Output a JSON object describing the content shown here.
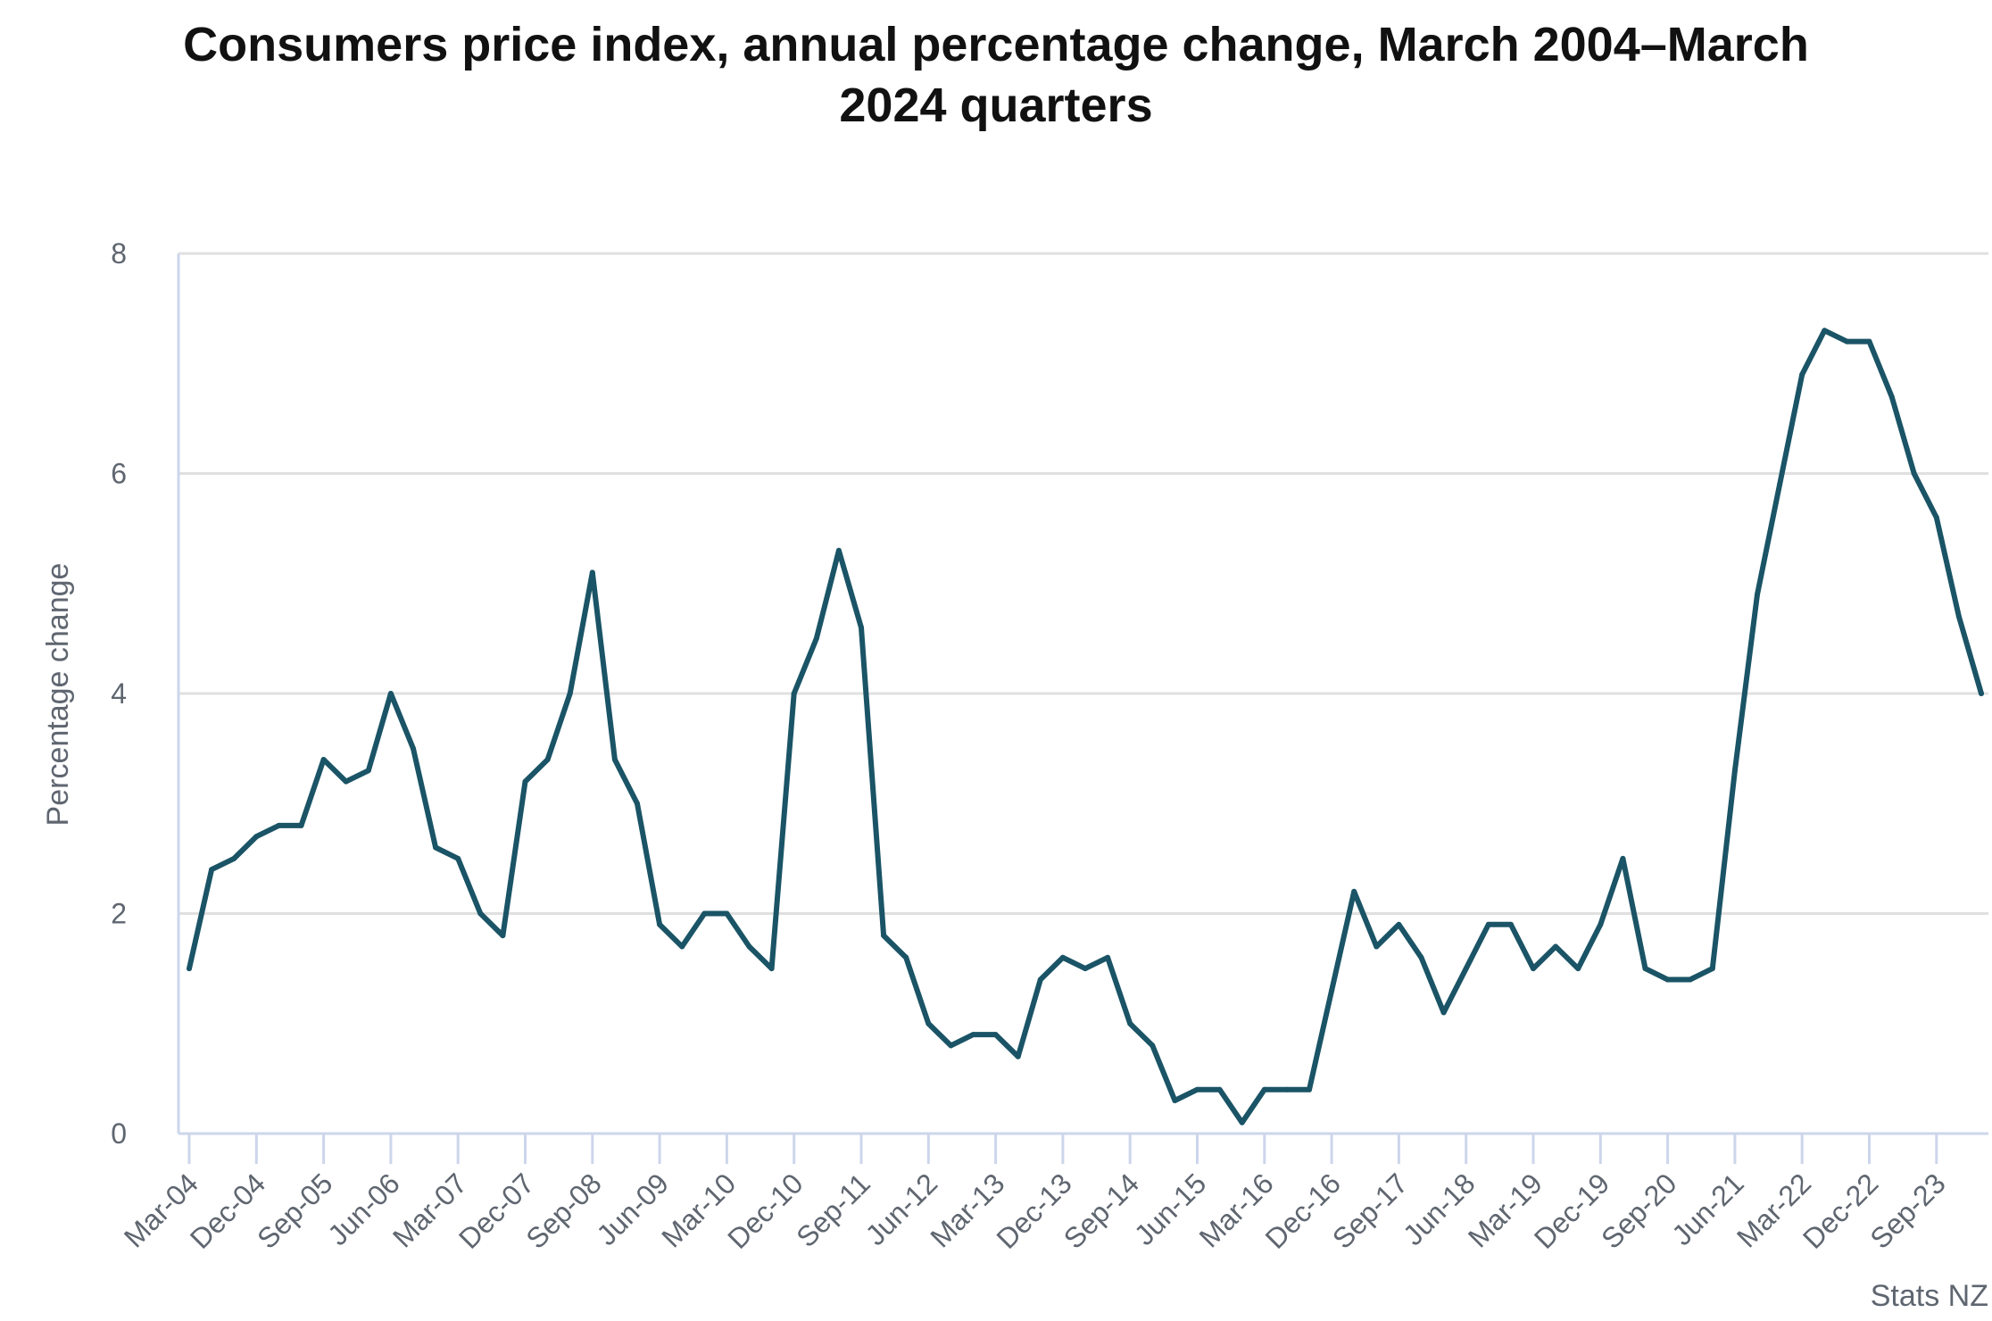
{
  "chart_data": {
    "type": "line",
    "title_lines": [
      "Consumers price index, annual percentage change, March 2004–March",
      "2024 quarters"
    ],
    "ylabel": "Percentage change",
    "xlabel": "",
    "ylim": [
      0,
      8
    ],
    "yticks": [
      0,
      2,
      4,
      6,
      8
    ],
    "grid": true,
    "legend": "none",
    "source": "Stats NZ",
    "line_color": "#1a5466",
    "x_tick_labels": [
      "Mar-04",
      "Dec-04",
      "Sep-05",
      "Jun-06",
      "Mar-07",
      "Dec-07",
      "Sep-08",
      "Jun-09",
      "Mar-10",
      "Dec-10",
      "Sep-11",
      "Jun-12",
      "Mar-13",
      "Dec-13",
      "Sep-14",
      "Jun-15",
      "Mar-16",
      "Dec-16",
      "Sep-17",
      "Jun-18",
      "Mar-19",
      "Dec-19",
      "Sep-20",
      "Jun-21",
      "Mar-22",
      "Dec-22",
      "Sep-23"
    ],
    "x": [
      "Mar-04",
      "Jun-04",
      "Sep-04",
      "Dec-04",
      "Mar-05",
      "Jun-05",
      "Sep-05",
      "Dec-05",
      "Mar-06",
      "Jun-06",
      "Sep-06",
      "Dec-06",
      "Mar-07",
      "Jun-07",
      "Sep-07",
      "Dec-07",
      "Mar-08",
      "Jun-08",
      "Sep-08",
      "Dec-08",
      "Mar-09",
      "Jun-09",
      "Sep-09",
      "Dec-09",
      "Mar-10",
      "Jun-10",
      "Sep-10",
      "Dec-10",
      "Mar-11",
      "Jun-11",
      "Sep-11",
      "Dec-11",
      "Mar-12",
      "Jun-12",
      "Sep-12",
      "Dec-12",
      "Mar-13",
      "Jun-13",
      "Sep-13",
      "Dec-13",
      "Mar-14",
      "Jun-14",
      "Sep-14",
      "Dec-14",
      "Mar-15",
      "Jun-15",
      "Sep-15",
      "Dec-15",
      "Mar-16",
      "Jun-16",
      "Sep-16",
      "Dec-16",
      "Mar-17",
      "Jun-17",
      "Sep-17",
      "Dec-17",
      "Mar-18",
      "Jun-18",
      "Sep-18",
      "Dec-18",
      "Mar-19",
      "Jun-19",
      "Sep-19",
      "Dec-19",
      "Mar-20",
      "Jun-20",
      "Sep-20",
      "Dec-20",
      "Mar-21",
      "Jun-21",
      "Sep-21",
      "Dec-21",
      "Mar-22",
      "Jun-22",
      "Sep-22",
      "Dec-22",
      "Mar-23",
      "Jun-23",
      "Sep-23",
      "Dec-23",
      "Mar-24"
    ],
    "series": [
      {
        "values": [
          1.5,
          2.4,
          2.5,
          2.7,
          2.8,
          2.8,
          3.4,
          3.2,
          3.3,
          4.0,
          3.5,
          2.6,
          2.5,
          2.0,
          1.8,
          3.2,
          3.4,
          4.0,
          5.1,
          3.4,
          3.0,
          1.9,
          1.7,
          2.0,
          2.0,
          1.7,
          1.5,
          4.0,
          4.5,
          5.3,
          4.6,
          1.8,
          1.6,
          1.0,
          0.8,
          0.9,
          0.9,
          0.7,
          1.4,
          1.6,
          1.5,
          1.6,
          1.0,
          0.8,
          0.3,
          0.4,
          0.4,
          0.1,
          0.4,
          0.4,
          0.4,
          1.3,
          2.2,
          1.7,
          1.9,
          1.6,
          1.1,
          1.5,
          1.9,
          1.9,
          1.5,
          1.7,
          1.5,
          1.9,
          2.5,
          1.5,
          1.4,
          1.4,
          1.5,
          3.3,
          4.9,
          5.9,
          6.9,
          7.3,
          7.2,
          7.2,
          6.7,
          6.0,
          5.6,
          4.7,
          4.0
        ]
      }
    ]
  }
}
